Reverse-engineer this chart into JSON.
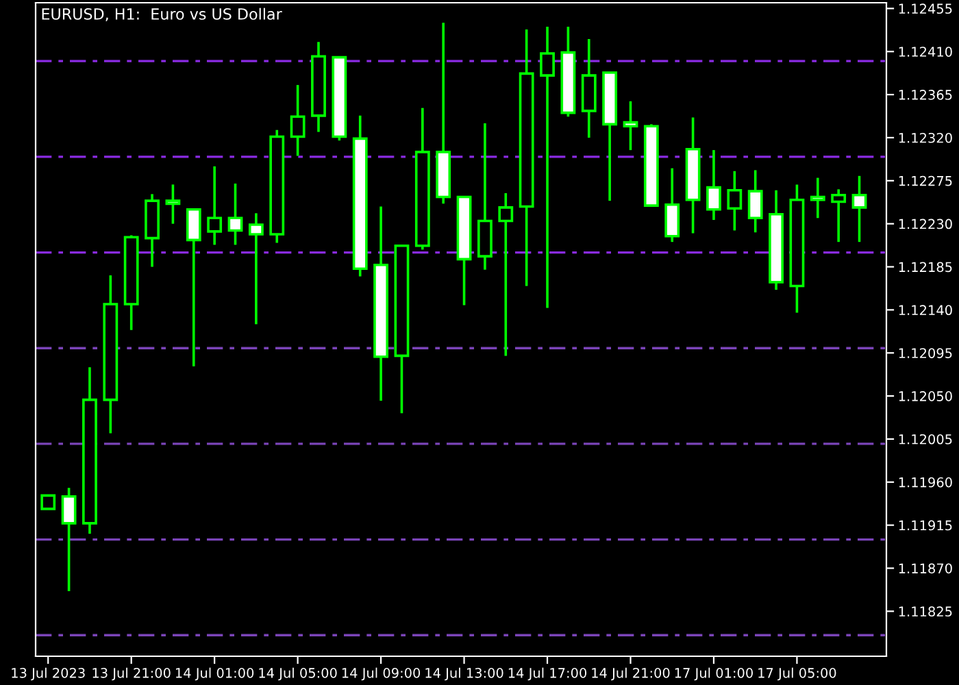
{
  "chart_data": {
    "type": "candlestick",
    "title": "EURUSD, H1:  Euro vs US Dollar",
    "categories": [
      "13 Jul 2023",
      null,
      null,
      null,
      "13 Jul 21:00",
      null,
      null,
      null,
      "14 Jul 01:00",
      null,
      null,
      null,
      "14 Jul 05:00",
      null,
      null,
      null,
      "14 Jul 09:00",
      null,
      null,
      null,
      "14 Jul 13:00",
      null,
      null,
      null,
      "14 Jul 17:00",
      null,
      null,
      null,
      "14 Jul 21:00",
      null,
      null,
      null,
      "17 Jul 01:00",
      null,
      null,
      null,
      "17 Jul 05:00",
      null,
      null,
      null
    ],
    "ohlc": [
      [
        1.11932,
        1.11946,
        1.11932,
        1.11946
      ],
      [
        1.11945,
        1.11954,
        1.11846,
        1.11917
      ],
      [
        1.11917,
        1.1208,
        1.11906,
        1.12046
      ],
      [
        1.12046,
        1.12176,
        1.12011,
        1.12146
      ],
      [
        1.12146,
        1.12218,
        1.12119,
        1.12216
      ],
      [
        1.12215,
        1.12261,
        1.12185,
        1.12254
      ],
      [
        1.12254,
        1.12271,
        1.1223,
        1.12251
      ],
      [
        1.12245,
        1.12245,
        1.12081,
        1.12213
      ],
      [
        1.12222,
        1.1229,
        1.12208,
        1.12236
      ],
      [
        1.12236,
        1.12272,
        1.12208,
        1.12223
      ],
      [
        1.12229,
        1.12241,
        1.12125,
        1.12219
      ],
      [
        1.12219,
        1.12328,
        1.1221,
        1.12321
      ],
      [
        1.12321,
        1.12375,
        1.12301,
        1.12342
      ],
      [
        1.12343,
        1.1242,
        1.12326,
        1.12405
      ],
      [
        1.12404,
        1.12404,
        1.12317,
        1.12321
      ],
      [
        1.12319,
        1.12343,
        1.12175,
        1.12183
      ],
      [
        1.12187,
        1.12248,
        1.12045,
        1.12091
      ],
      [
        1.12092,
        1.12208,
        1.12032,
        1.12207
      ],
      [
        1.12207,
        1.12351,
        1.12203,
        1.12305
      ],
      [
        1.12305,
        1.1244,
        1.12251,
        1.12258
      ],
      [
        1.12258,
        1.12258,
        1.12145,
        1.12193
      ],
      [
        1.12196,
        1.12335,
        1.12182,
        1.12233
      ],
      [
        1.12233,
        1.12262,
        1.12092,
        1.12247
      ],
      [
        1.12248,
        1.12433,
        1.12165,
        1.12387
      ],
      [
        1.12385,
        1.12436,
        1.12142,
        1.12408
      ],
      [
        1.12409,
        1.12436,
        1.12342,
        1.12346
      ],
      [
        1.12348,
        1.12423,
        1.1232,
        1.12385
      ],
      [
        1.12388,
        1.12388,
        1.12254,
        1.12334
      ],
      [
        1.12336,
        1.12358,
        1.12307,
        1.12332
      ],
      [
        1.12332,
        1.12334,
        1.12248,
        1.12249
      ],
      [
        1.1225,
        1.12288,
        1.12211,
        1.12217
      ],
      [
        1.12308,
        1.12341,
        1.1222,
        1.12255
      ],
      [
        1.12268,
        1.12307,
        1.12234,
        1.12245
      ],
      [
        1.12246,
        1.12285,
        1.12223,
        1.12265
      ],
      [
        1.12264,
        1.12286,
        1.12221,
        1.12236
      ],
      [
        1.1224,
        1.12265,
        1.12161,
        1.12169
      ],
      [
        1.12165,
        1.12271,
        1.12137,
        1.12255
      ],
      [
        1.12258,
        1.12278,
        1.12236,
        1.12255
      ],
      [
        1.12253,
        1.12266,
        1.12211,
        1.1226
      ],
      [
        1.1226,
        1.1228,
        1.12211,
        1.12247
      ]
    ],
    "color": "#00ff00",
    "colors": [
      "#000000",
      "#ffffff",
      "#000000",
      "#000000",
      "#000000",
      "#000000",
      "#ffffff",
      "#ffffff",
      "#000000",
      "#ffffff",
      "#ffffff",
      "#000000",
      "#000000",
      "#000000",
      "#ffffff",
      "#ffffff",
      "#ffffff",
      "#000000",
      "#000000",
      "#ffffff",
      "#ffffff",
      "#000000",
      "#000000",
      "#000000",
      "#000000",
      "#ffffff",
      "#000000",
      "#ffffff",
      "#ffffff",
      "#ffffff",
      "#ffffff",
      "#ffffff",
      "#ffffff",
      "#000000",
      "#ffffff",
      "#ffffff",
      "#000000",
      "#ffffff",
      "#000000",
      "#ffffff"
    ],
    "ylim": [
      1.11778,
      1.12461
    ],
    "yticks": [
      1.11825,
      {
        "value": 1.1187,
        "label": "1.11870"
      },
      1.11915,
      {
        "value": 1.1196,
        "label": "1.11960"
      },
      1.12005,
      {
        "value": 1.1205,
        "label": "1.12050"
      },
      1.12095,
      {
        "value": 1.1214,
        "label": "1.12140"
      },
      1.12185,
      {
        "value": 1.1223,
        "label": "1.12230"
      },
      1.12275,
      {
        "value": 1.1232,
        "label": "1.12320"
      },
      1.12365,
      {
        "value": 1.1241,
        "label": "1.12410"
      },
      1.12455
    ],
    "ref_lines": [
      {
        "axis": "y",
        "value": 1.124,
        "color": "#8a2be2",
        "line_style": "dashed"
      },
      {
        "axis": "y",
        "value": 1.123,
        "color": "#8a2be2",
        "line_style": "dashed"
      },
      {
        "axis": "y",
        "value": 1.122,
        "color": "#8a2be2",
        "line_style": "dashed"
      },
      {
        "axis": "y",
        "value": 1.121,
        "color": "#7a44b8",
        "line_style": "dashed"
      },
      {
        "axis": "y",
        "value": 1.12,
        "color": "#7a44b8",
        "line_style": "dashed"
      },
      {
        "axis": "y",
        "value": 1.119,
        "color": "#7a44b8",
        "line_style": "dashed"
      },
      {
        "axis": "y",
        "value": 1.118,
        "color": "#7a44b8",
        "line_style": "dashed"
      }
    ],
    "grid": false,
    "legend": false
  }
}
